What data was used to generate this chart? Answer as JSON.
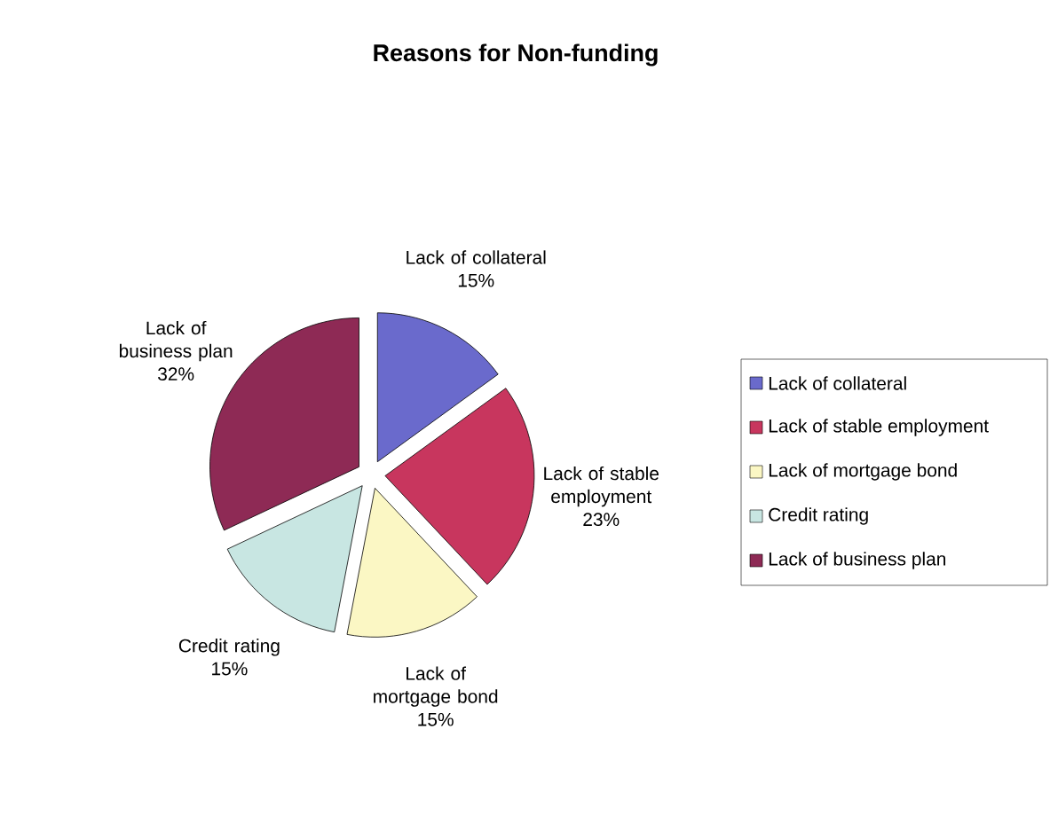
{
  "chart_data": {
    "type": "pie",
    "title": "Reasons for Non-funding",
    "categories": [
      "Lack of collateral",
      "Lack of stable employment",
      "Lack of mortgage bond",
      "Credit rating",
      "Lack of business plan"
    ],
    "values": [
      15,
      23,
      15,
      15,
      32
    ],
    "colors": [
      "#6a6acc",
      "#c8365e",
      "#fbf7c4",
      "#c8e6e2",
      "#8e2a55"
    ],
    "value_labels": [
      "15%",
      "23%",
      "15%",
      "15%",
      "32%"
    ],
    "legend": "right"
  }
}
